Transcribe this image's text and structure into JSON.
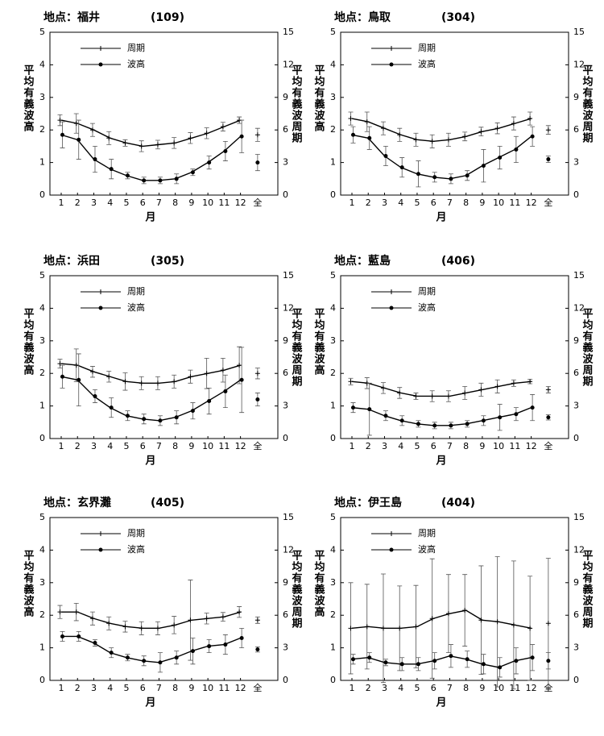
{
  "chart_data": [
    {
      "type": "line",
      "title": "地点：福井",
      "station_code": "(109)",
      "categories": [
        1,
        2,
        3,
        4,
        5,
        6,
        7,
        8,
        9,
        10,
        11,
        12
      ],
      "overall_label": "全",
      "xlabel": "月",
      "ylabel": "平均有義波高",
      "y2label": "平均有義波周期",
      "ylim": [
        0,
        5
      ],
      "yticks": [
        0,
        1,
        2,
        3,
        4,
        5
      ],
      "y2lim": [
        0,
        15
      ],
      "y2ticks": [
        0,
        3,
        6,
        9,
        12,
        15
      ],
      "series": [
        {
          "name": "周期",
          "axis": "y2",
          "color": "#000000",
          "marker": "plus",
          "values": [
            6.9,
            6.6,
            6.0,
            5.25,
            4.8,
            4.5,
            4.65,
            4.8,
            5.25,
            5.7,
            6.3,
            6.9
          ],
          "errors": [
            0.5,
            0.9,
            0.6,
            0.6,
            0.3,
            0.5,
            0.4,
            0.5,
            0.5,
            0.5,
            0.4,
            0.3
          ],
          "overall": 5.55,
          "overall_error": 0.6
        },
        {
          "name": "波高",
          "axis": "y",
          "color": "#000000",
          "marker": "dot",
          "values": [
            1.85,
            1.7,
            1.1,
            0.8,
            0.6,
            0.45,
            0.45,
            0.5,
            0.7,
            1.0,
            1.35,
            1.8
          ],
          "errors": [
            0.4,
            0.6,
            0.4,
            0.3,
            0.1,
            0.1,
            0.1,
            0.15,
            0.1,
            0.2,
            0.3,
            0.5
          ],
          "overall": 1.0,
          "overall_error": 0.25
        }
      ]
    },
    {
      "type": "line",
      "title": "地点：鳥取",
      "station_code": "(304)",
      "categories": [
        1,
        2,
        3,
        4,
        5,
        6,
        7,
        8,
        9,
        10,
        11,
        12
      ],
      "overall_label": "全",
      "xlabel": "月",
      "ylabel": "平均有義波高",
      "y2label": "平均有義波周期",
      "ylim": [
        0,
        5
      ],
      "yticks": [
        0,
        1,
        2,
        3,
        4,
        5
      ],
      "y2lim": [
        0,
        15
      ],
      "y2ticks": [
        0,
        3,
        6,
        9,
        12,
        15
      ],
      "series": [
        {
          "name": "周期",
          "axis": "y2",
          "color": "#000000",
          "marker": "plus",
          "values": [
            7.05,
            6.75,
            6.15,
            5.55,
            5.1,
            4.95,
            5.1,
            5.4,
            5.85,
            6.15,
            6.6,
            7.05
          ],
          "errors": [
            0.6,
            0.9,
            0.6,
            0.6,
            0.6,
            0.6,
            0.6,
            0.4,
            0.4,
            0.5,
            0.6,
            0.6
          ],
          "overall": 6.0,
          "overall_error": 0.4
        },
        {
          "name": "波高",
          "axis": "y",
          "color": "#000000",
          "marker": "dot",
          "values": [
            1.85,
            1.75,
            1.2,
            0.85,
            0.65,
            0.55,
            0.5,
            0.6,
            0.9,
            1.15,
            1.4,
            1.8
          ],
          "errors": [
            0.25,
            0.35,
            0.3,
            0.3,
            0.4,
            0.15,
            0.15,
            0.15,
            0.5,
            0.35,
            0.4,
            0.3
          ],
          "overall": 1.1,
          "overall_error": 0.1
        }
      ]
    },
    {
      "type": "line",
      "title": "地点：浜田",
      "station_code": "(305)",
      "categories": [
        1,
        2,
        3,
        4,
        5,
        6,
        7,
        8,
        9,
        10,
        11,
        12
      ],
      "overall_label": "全",
      "xlabel": "月",
      "ylabel": "平均有義波高",
      "y2label": "平均有義波周期",
      "ylim": [
        0,
        5
      ],
      "yticks": [
        0,
        1,
        2,
        3,
        4,
        5
      ],
      "y2lim": [
        0,
        15
      ],
      "y2ticks": [
        0,
        3,
        6,
        9,
        12,
        15
      ],
      "series": [
        {
          "name": "周期",
          "axis": "y2",
          "color": "#000000",
          "marker": "plus",
          "values": [
            6.9,
            6.75,
            6.15,
            5.7,
            5.25,
            5.1,
            5.1,
            5.25,
            5.7,
            6.0,
            6.3,
            6.75
          ],
          "errors": [
            0.4,
            1.5,
            0.5,
            0.5,
            0.8,
            0.6,
            0.6,
            0.6,
            0.6,
            1.4,
            1.1,
            1.7
          ],
          "overall": 6.0,
          "overall_error": 0.5
        },
        {
          "name": "波高",
          "axis": "y",
          "color": "#000000",
          "marker": "dot",
          "values": [
            1.9,
            1.8,
            1.3,
            0.95,
            0.7,
            0.6,
            0.55,
            0.65,
            0.85,
            1.15,
            1.45,
            1.8
          ],
          "errors": [
            0.35,
            0.8,
            0.2,
            0.3,
            0.15,
            0.15,
            0.15,
            0.2,
            0.25,
            0.4,
            0.5,
            1.0
          ],
          "overall": 1.2,
          "overall_error": 0.2
        }
      ]
    },
    {
      "type": "line",
      "title": "地点：藍島",
      "station_code": "(406)",
      "categories": [
        1,
        2,
        3,
        4,
        5,
        6,
        7,
        8,
        9,
        10,
        11,
        12
      ],
      "overall_label": "全",
      "xlabel": "月",
      "ylabel": "平均有義波高",
      "y2label": "平均有義波周期",
      "ylim": [
        0,
        5
      ],
      "yticks": [
        0,
        1,
        2,
        3,
        4,
        5
      ],
      "y2lim": [
        0,
        15
      ],
      "y2ticks": [
        0,
        3,
        6,
        9,
        12,
        15
      ],
      "series": [
        {
          "name": "周期",
          "axis": "y2",
          "color": "#000000",
          "marker": "plus",
          "values": [
            5.25,
            5.1,
            4.65,
            4.2,
            3.9,
            3.9,
            3.9,
            4.2,
            4.5,
            4.8,
            5.1,
            5.25
          ],
          "errors": [
            0.3,
            0.5,
            0.5,
            0.5,
            0.3,
            0.5,
            0.5,
            0.6,
            0.6,
            0.6,
            0.3,
            0.2
          ],
          "overall": 4.5,
          "overall_error": 0.3
        },
        {
          "name": "波高",
          "axis": "y",
          "color": "#000000",
          "marker": "dot",
          "values": [
            0.95,
            0.9,
            0.7,
            0.55,
            0.45,
            0.4,
            0.4,
            0.45,
            0.55,
            0.65,
            0.75,
            0.95
          ],
          "errors": [
            0.15,
            0.8,
            0.15,
            0.15,
            0.1,
            0.1,
            0.1,
            0.1,
            0.15,
            0.4,
            0.2,
            0.4
          ],
          "overall": 0.65,
          "overall_error": 0.08
        }
      ]
    },
    {
      "type": "line",
      "title": "地点：玄界灘",
      "station_code": "(405)",
      "categories": [
        1,
        2,
        3,
        4,
        5,
        6,
        7,
        8,
        9,
        10,
        11,
        12
      ],
      "overall_label": "全",
      "xlabel": "月",
      "ylabel": "平均有義波高",
      "y2label": "平均有義波周期",
      "ylim": [
        0,
        5
      ],
      "yticks": [
        0,
        1,
        2,
        3,
        4,
        5
      ],
      "y2lim": [
        0,
        15
      ],
      "y2ticks": [
        0,
        3,
        6,
        9,
        12,
        15
      ],
      "series": [
        {
          "name": "周期",
          "axis": "y2",
          "color": "#000000",
          "marker": "plus",
          "values": [
            6.3,
            6.3,
            5.7,
            5.25,
            4.95,
            4.8,
            4.8,
            5.1,
            5.55,
            5.7,
            5.85,
            6.3
          ],
          "errors": [
            0.6,
            0.8,
            0.6,
            0.6,
            0.5,
            0.6,
            0.6,
            0.8,
            3.7,
            0.5,
            0.4,
            0.5
          ],
          "overall": 5.55,
          "overall_error": 0.3
        },
        {
          "name": "波高",
          "axis": "y",
          "color": "#000000",
          "marker": "dot",
          "values": [
            1.35,
            1.35,
            1.15,
            0.85,
            0.7,
            0.6,
            0.55,
            0.7,
            0.9,
            1.05,
            1.1,
            1.3
          ],
          "errors": [
            0.15,
            0.15,
            0.1,
            0.15,
            0.1,
            0.15,
            0.3,
            0.2,
            0.4,
            0.2,
            0.3,
            0.3
          ],
          "overall": 0.95,
          "overall_error": 0.08
        }
      ]
    },
    {
      "type": "line",
      "title": "地点：伊王島",
      "station_code": "(404)",
      "categories": [
        1,
        2,
        3,
        4,
        5,
        6,
        7,
        8,
        9,
        10,
        11,
        12
      ],
      "overall_label": "全",
      "xlabel": "月",
      "ylabel": "平均有義波高",
      "y2label": "平均有義波周期",
      "ylim": [
        0,
        5
      ],
      "yticks": [
        0,
        1,
        2,
        3,
        4,
        5
      ],
      "y2lim": [
        0,
        15
      ],
      "y2ticks": [
        0,
        3,
        6,
        9,
        12,
        15
      ],
      "series": [
        {
          "name": "周期",
          "axis": "y2",
          "color": "#000000",
          "marker": "plus",
          "values": [
            4.8,
            4.95,
            4.8,
            4.8,
            4.95,
            5.7,
            6.15,
            6.45,
            5.55,
            5.4,
            5.1,
            4.8
          ],
          "errors": [
            4.2,
            3.9,
            5.0,
            3.9,
            3.8,
            5.5,
            3.6,
            3.3,
            5.0,
            6.0,
            5.9,
            4.8
          ],
          "overall": 5.25,
          "overall_error": 6.0
        },
        {
          "name": "波高",
          "axis": "y",
          "color": "#000000",
          "marker": "dot",
          "values": [
            0.65,
            0.7,
            0.55,
            0.5,
            0.5,
            0.6,
            0.75,
            0.65,
            0.5,
            0.4,
            0.6,
            0.7
          ],
          "errors": [
            0.15,
            0.15,
            0.1,
            0.2,
            0.2,
            0.25,
            0.35,
            0.25,
            0.3,
            0.3,
            0.4,
            0.4
          ],
          "overall": 0.6,
          "overall_error": 0.25
        }
      ]
    }
  ]
}
